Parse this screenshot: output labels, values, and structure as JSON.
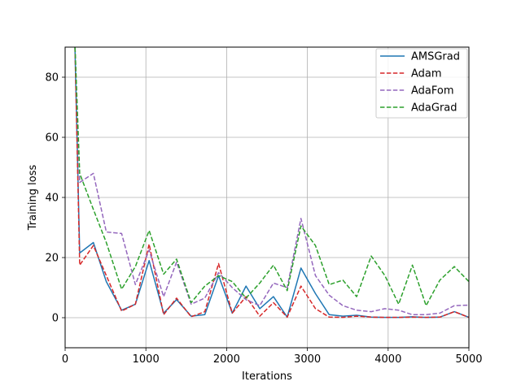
{
  "chart_data": {
    "type": "line",
    "title": "",
    "xlabel": "Iterations",
    "ylabel": "Training loss",
    "xlim": [
      0,
      5000
    ],
    "ylim": [
      -10,
      90
    ],
    "xticks": [
      0,
      1000,
      2000,
      3000,
      4000,
      5000
    ],
    "yticks": [
      0,
      20,
      40,
      60,
      80
    ],
    "grid": true,
    "legend_position": "top-right",
    "series": [
      {
        "name": "AMSGrad",
        "color": "#1f77b4",
        "dash": "solid",
        "x": [
          120,
          180,
          350,
          510,
          700,
          870,
          1040,
          1220,
          1380,
          1560,
          1730,
          1900,
          2070,
          2240,
          2410,
          2580,
          2750,
          2920,
          3100,
          3270,
          3440,
          3610,
          3790,
          3960,
          4130,
          4300,
          4470,
          4640,
          4820,
          5000
        ],
        "y": [
          92,
          21.5,
          25,
          12,
          2.5,
          4.5,
          19,
          1.5,
          6,
          0.5,
          1,
          14,
          1.5,
          10.5,
          3,
          7,
          0.2,
          16.5,
          8,
          1,
          0.5,
          0.8,
          0.2,
          0.1,
          0.1,
          0.3,
          0.1,
          0.2,
          2,
          0.1
        ]
      },
      {
        "name": "Adam",
        "color": "#d62728",
        "dash": "dashed",
        "x": [
          120,
          180,
          350,
          510,
          700,
          870,
          1040,
          1220,
          1380,
          1560,
          1730,
          1900,
          2070,
          2240,
          2410,
          2580,
          2750,
          2920,
          3100,
          3270,
          3440,
          3610,
          3790,
          3960,
          4130,
          4300,
          4470,
          4640,
          4820,
          5000
        ],
        "y": [
          92,
          17.5,
          24,
          14,
          2.2,
          4.5,
          24.5,
          1,
          6.5,
          0.3,
          2,
          18,
          1.5,
          7,
          0.5,
          5,
          0.2,
          10.5,
          3,
          0.2,
          0.1,
          0.5,
          0.2,
          0.1,
          0.1,
          0.2,
          0.1,
          0.2,
          2,
          0.1
        ]
      },
      {
        "name": "AdaFom",
        "color": "#9467bd",
        "dash": "dashed",
        "x": [
          120,
          180,
          350,
          510,
          700,
          870,
          1040,
          1220,
          1380,
          1560,
          1730,
          1900,
          2070,
          2240,
          2410,
          2580,
          2750,
          2920,
          3100,
          3270,
          3440,
          3610,
          3790,
          3960,
          4130,
          4300,
          4470,
          4640,
          4820,
          5000
        ],
        "y": [
          92,
          45,
          48,
          28.5,
          28,
          11,
          22.5,
          7,
          18.5,
          4.5,
          6.5,
          15,
          10,
          6,
          4,
          11.5,
          10,
          33,
          14,
          7.5,
          4,
          2.5,
          2,
          3,
          2.5,
          1,
          1,
          1.5,
          4,
          4.2
        ]
      },
      {
        "name": "AdaGrad",
        "color": "#2ca02c",
        "dash": "dashed",
        "x": [
          120,
          180,
          350,
          510,
          700,
          870,
          1040,
          1220,
          1380,
          1560,
          1730,
          1900,
          2070,
          2240,
          2410,
          2580,
          2750,
          2920,
          3100,
          3270,
          3440,
          3610,
          3790,
          3960,
          4130,
          4300,
          4470,
          4640,
          4820,
          5000
        ],
        "y": [
          92,
          48,
          36,
          25,
          9.5,
          17,
          29,
          14.5,
          19.5,
          5,
          10.5,
          14,
          12,
          6.5,
          11.5,
          17.5,
          9,
          30.5,
          24,
          11,
          12.5,
          7,
          20.5,
          14,
          4.5,
          17.5,
          4,
          12.5,
          17,
          12
        ]
      }
    ]
  }
}
